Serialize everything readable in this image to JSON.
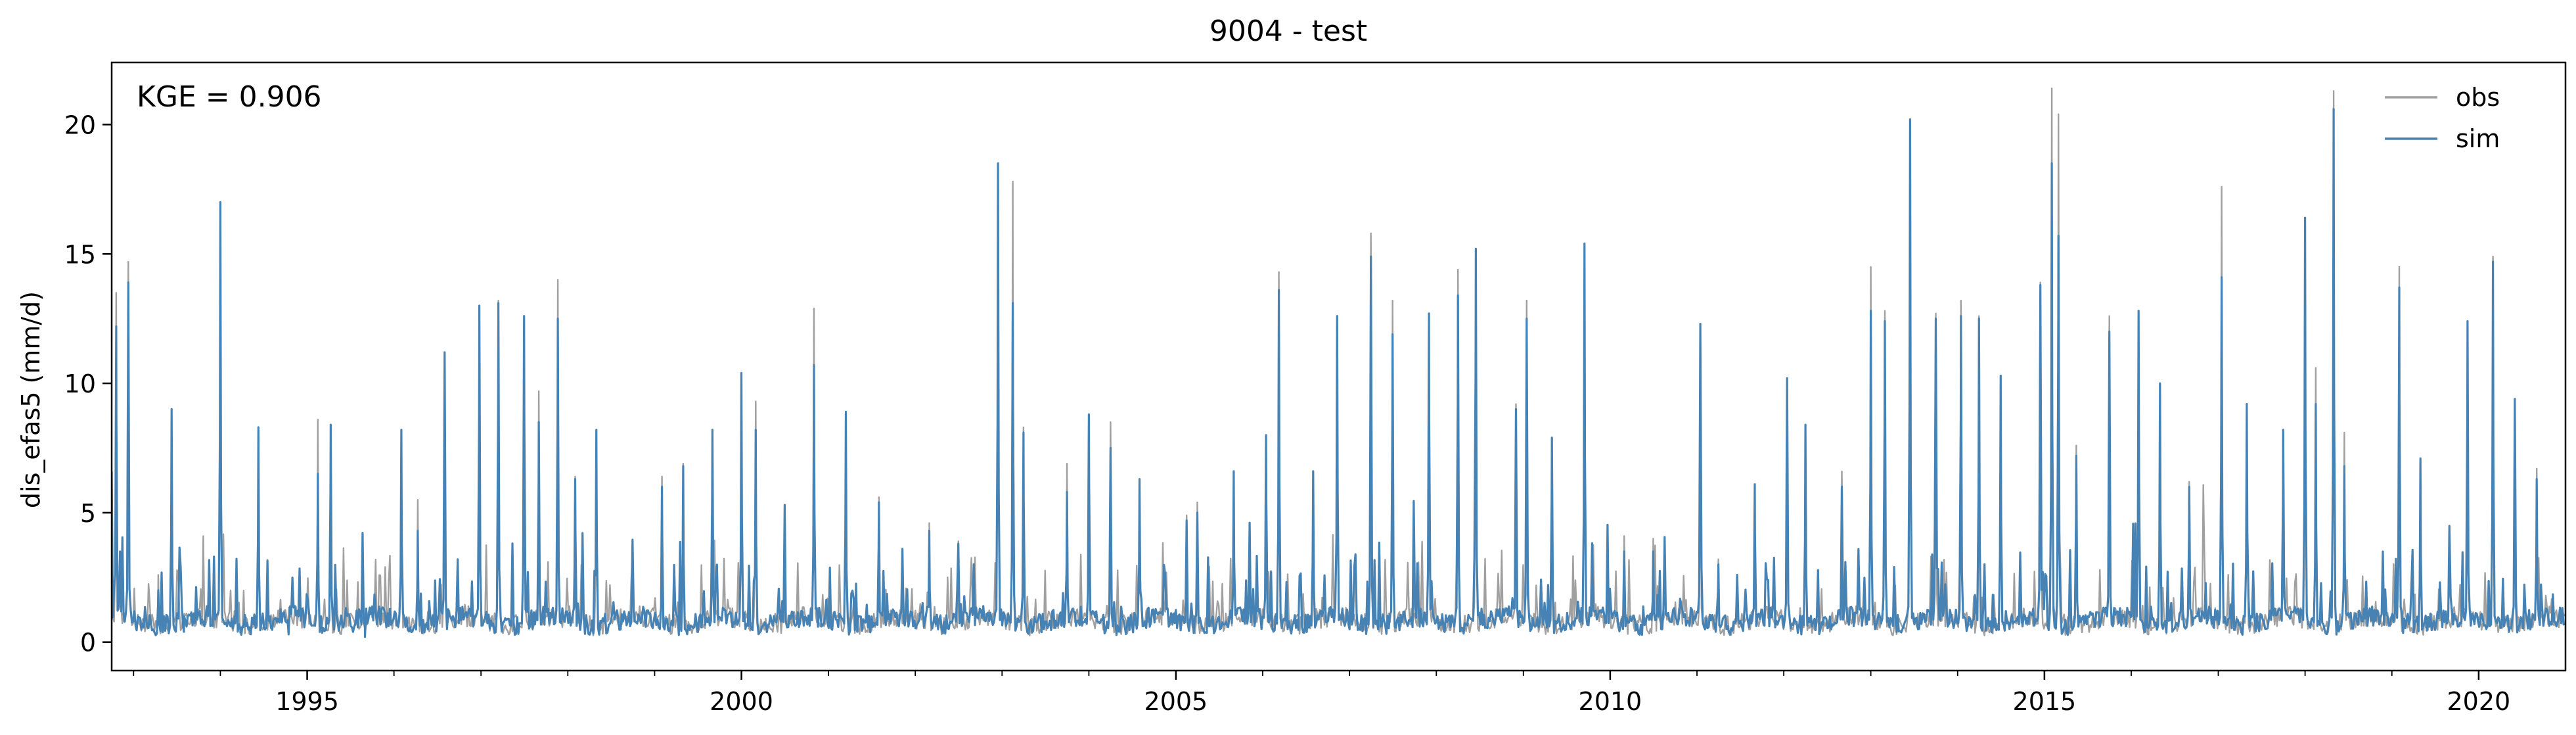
{
  "chart_data": {
    "type": "line",
    "title": "9004 - test",
    "ylabel": "dis_efas5 (mm/d)",
    "xlabel": "",
    "annotation": "KGE = 0.906",
    "xlim": [
      "1992-10-01",
      "2020-12-31"
    ],
    "ylim": [
      -1.1,
      22.4
    ],
    "x_ticks": [
      "1995",
      "2000",
      "2005",
      "2010",
      "2015",
      "2020"
    ],
    "y_ticks": [
      0,
      5,
      10,
      15,
      20
    ],
    "grid": false,
    "legend_position": "top-right",
    "series": [
      {
        "name": "obs",
        "color": "#a0a0a0",
        "points": [
          [
            "1992-10-01",
            6.6
          ],
          [
            "1992-10-20",
            13.5
          ],
          [
            "1992-11-05",
            3.2
          ],
          [
            "1992-12-10",
            14.7
          ],
          [
            "1993-01-10",
            0.6
          ],
          [
            "1993-04-15",
            2.6
          ],
          [
            "1993-06-10",
            7.1
          ],
          [
            "1993-08-01",
            0.5
          ],
          [
            "1994-01-01",
            16.5
          ],
          [
            "1994-03-01",
            1.2
          ],
          [
            "1994-06-10",
            8.2
          ],
          [
            "1994-10-15",
            0.4
          ],
          [
            "1995-02-15",
            8.6
          ],
          [
            "1995-04-10",
            8.4
          ],
          [
            "1995-09-01",
            0.3
          ],
          [
            "1996-02-01",
            8.2
          ],
          [
            "1996-04-10",
            5.5
          ],
          [
            "1996-08-01",
            11.1
          ],
          [
            "1996-12-25",
            12.9
          ],
          [
            "1997-03-15",
            13.2
          ],
          [
            "1997-07-01",
            12.6
          ],
          [
            "1997-09-01",
            9.7
          ],
          [
            "1997-11-20",
            14.0
          ],
          [
            "1998-02-01",
            6.4
          ],
          [
            "1998-05-01",
            8.2
          ],
          [
            "1999-02-01",
            6.4
          ],
          [
            "1999-05-01",
            6.9
          ],
          [
            "1999-09-01",
            8.2
          ],
          [
            "2000-01-01",
            10.4
          ],
          [
            "2000-03-01",
            9.3
          ],
          [
            "2000-07-01",
            5.3
          ],
          [
            "2000-11-01",
            12.9
          ],
          [
            "2001-03-15",
            8.7
          ],
          [
            "2001-08-01",
            5.6
          ],
          [
            "2002-03-01",
            4.6
          ],
          [
            "2002-07-01",
            3.9
          ],
          [
            "2002-12-15",
            18.4
          ],
          [
            "2003-02-15",
            17.8
          ],
          [
            "2003-04-01",
            8.3
          ],
          [
            "2003-10-01",
            6.9
          ],
          [
            "2004-01-01",
            8.6
          ],
          [
            "2004-04-01",
            8.5
          ],
          [
            "2004-08-01",
            6.3
          ],
          [
            "2005-02-15",
            4.9
          ],
          [
            "2005-04-01",
            5.4
          ],
          [
            "2005-09-01",
            6.6
          ],
          [
            "2006-01-15",
            8.0
          ],
          [
            "2006-03-10",
            14.3
          ],
          [
            "2006-08-01",
            6.6
          ],
          [
            "2006-11-10",
            12.6
          ],
          [
            "2007-04-01",
            15.8
          ],
          [
            "2007-07-01",
            13.2
          ],
          [
            "2007-12-01",
            12.7
          ],
          [
            "2008-04-01",
            14.4
          ],
          [
            "2008-06-15",
            15.1
          ],
          [
            "2008-12-01",
            9.2
          ],
          [
            "2009-01-15",
            13.2
          ],
          [
            "2009-05-01",
            7.9
          ],
          [
            "2009-09-15",
            15.4
          ],
          [
            "2010-03-01",
            4.1
          ],
          [
            "2010-07-01",
            4.0
          ],
          [
            "2011-01-15",
            9.1
          ],
          [
            "2011-04-01",
            3.2
          ],
          [
            "2011-09-01",
            6.1
          ],
          [
            "2012-01-15",
            10.2
          ],
          [
            "2012-04-01",
            8.4
          ],
          [
            "2012-09-01",
            6.6
          ],
          [
            "2013-01-01",
            14.5
          ],
          [
            "2013-03-01",
            12.8
          ],
          [
            "2013-06-15",
            20.2
          ],
          [
            "2013-10-01",
            12.7
          ],
          [
            "2014-01-15",
            13.2
          ],
          [
            "2014-04-01",
            12.6
          ],
          [
            "2014-07-01",
            10.3
          ],
          [
            "2014-12-15",
            13.9
          ],
          [
            "2015-02-01",
            21.4
          ],
          [
            "2015-03-01",
            20.4
          ],
          [
            "2015-05-15",
            7.6
          ],
          [
            "2015-10-01",
            12.6
          ],
          [
            "2016-02-01",
            12.8
          ],
          [
            "2016-05-01",
            10.0
          ],
          [
            "2016-09-01",
            6.2
          ],
          [
            "2017-01-15",
            17.6
          ],
          [
            "2017-05-01",
            9.2
          ],
          [
            "2017-10-01",
            8.2
          ],
          [
            "2018-01-01",
            16.4
          ],
          [
            "2018-02-15",
            10.6
          ],
          [
            "2018-05-01",
            21.3
          ],
          [
            "2018-06-15",
            8.1
          ],
          [
            "2019-02-01",
            14.5
          ],
          [
            "2019-05-01",
            7.1
          ],
          [
            "2019-11-15",
            12.4
          ],
          [
            "2020-03-01",
            14.9
          ],
          [
            "2020-06-01",
            9.4
          ],
          [
            "2020-09-01",
            6.7
          ]
        ]
      },
      {
        "name": "sim",
        "color": "#4682b4",
        "points": [
          [
            "1992-10-01",
            6.6
          ],
          [
            "1992-10-20",
            12.2
          ],
          [
            "1992-11-05",
            3.5
          ],
          [
            "1992-12-10",
            13.9
          ],
          [
            "1993-01-10",
            0.6
          ],
          [
            "1993-04-15",
            2.0
          ],
          [
            "1993-06-10",
            9.0
          ],
          [
            "1993-08-01",
            0.4
          ],
          [
            "1994-01-01",
            17.0
          ],
          [
            "1994-03-01",
            1.0
          ],
          [
            "1994-06-10",
            8.3
          ],
          [
            "1994-10-15",
            0.3
          ],
          [
            "1995-02-15",
            6.5
          ],
          [
            "1995-04-10",
            8.4
          ],
          [
            "1995-09-01",
            0.2
          ],
          [
            "1996-02-01",
            8.2
          ],
          [
            "1996-04-10",
            4.3
          ],
          [
            "1996-08-01",
            11.2
          ],
          [
            "1996-12-25",
            13.0
          ],
          [
            "1997-03-15",
            13.1
          ],
          [
            "1997-07-01",
            12.6
          ],
          [
            "1997-09-01",
            8.5
          ],
          [
            "1997-11-20",
            12.5
          ],
          [
            "1998-02-01",
            6.3
          ],
          [
            "1998-05-01",
            8.2
          ],
          [
            "1999-02-01",
            6.0
          ],
          [
            "1999-05-01",
            6.8
          ],
          [
            "1999-09-01",
            8.2
          ],
          [
            "2000-01-01",
            10.4
          ],
          [
            "2000-03-01",
            8.2
          ],
          [
            "2000-07-01",
            5.3
          ],
          [
            "2000-11-01",
            10.7
          ],
          [
            "2001-03-15",
            8.9
          ],
          [
            "2001-08-01",
            5.4
          ],
          [
            "2002-03-01",
            4.3
          ],
          [
            "2002-07-01",
            3.8
          ],
          [
            "2002-12-15",
            18.5
          ],
          [
            "2003-02-15",
            13.1
          ],
          [
            "2003-04-01",
            8.1
          ],
          [
            "2003-10-01",
            5.8
          ],
          [
            "2004-01-01",
            8.8
          ],
          [
            "2004-04-01",
            7.5
          ],
          [
            "2004-08-01",
            6.3
          ],
          [
            "2005-02-15",
            4.7
          ],
          [
            "2005-04-01",
            5.0
          ],
          [
            "2005-09-01",
            6.6
          ],
          [
            "2006-01-15",
            8.0
          ],
          [
            "2006-03-10",
            13.6
          ],
          [
            "2006-08-01",
            6.6
          ],
          [
            "2006-11-10",
            12.6
          ],
          [
            "2007-04-01",
            14.9
          ],
          [
            "2007-07-01",
            11.9
          ],
          [
            "2007-12-01",
            12.7
          ],
          [
            "2008-04-01",
            13.4
          ],
          [
            "2008-06-15",
            15.2
          ],
          [
            "2008-12-01",
            9.0
          ],
          [
            "2009-01-15",
            12.5
          ],
          [
            "2009-05-01",
            7.9
          ],
          [
            "2009-09-15",
            15.4
          ],
          [
            "2010-03-01",
            3.5
          ],
          [
            "2010-07-01",
            3.5
          ],
          [
            "2011-01-15",
            12.3
          ],
          [
            "2011-04-01",
            3.0
          ],
          [
            "2011-09-01",
            6.1
          ],
          [
            "2012-01-15",
            10.2
          ],
          [
            "2012-04-01",
            8.4
          ],
          [
            "2012-09-01",
            6.0
          ],
          [
            "2013-01-01",
            12.8
          ],
          [
            "2013-03-01",
            12.4
          ],
          [
            "2013-06-15",
            20.2
          ],
          [
            "2013-10-01",
            12.5
          ],
          [
            "2014-01-15",
            12.6
          ],
          [
            "2014-04-01",
            12.5
          ],
          [
            "2014-07-01",
            10.3
          ],
          [
            "2014-12-15",
            13.8
          ],
          [
            "2015-02-01",
            18.5
          ],
          [
            "2015-03-01",
            15.7
          ],
          [
            "2015-05-15",
            7.2
          ],
          [
            "2015-10-01",
            12.0
          ],
          [
            "2016-02-01",
            12.8
          ],
          [
            "2016-05-01",
            10.0
          ],
          [
            "2016-09-01",
            6.0
          ],
          [
            "2017-01-15",
            14.1
          ],
          [
            "2017-05-01",
            9.2
          ],
          [
            "2017-10-01",
            8.2
          ],
          [
            "2018-01-01",
            16.4
          ],
          [
            "2018-02-15",
            9.2
          ],
          [
            "2018-05-01",
            20.6
          ],
          [
            "2018-06-15",
            6.8
          ],
          [
            "2019-02-01",
            13.7
          ],
          [
            "2019-05-01",
            7.1
          ],
          [
            "2019-11-15",
            12.4
          ],
          [
            "2020-03-01",
            14.7
          ],
          [
            "2020-06-01",
            9.4
          ],
          [
            "2020-09-01",
            6.3
          ]
        ]
      }
    ]
  }
}
